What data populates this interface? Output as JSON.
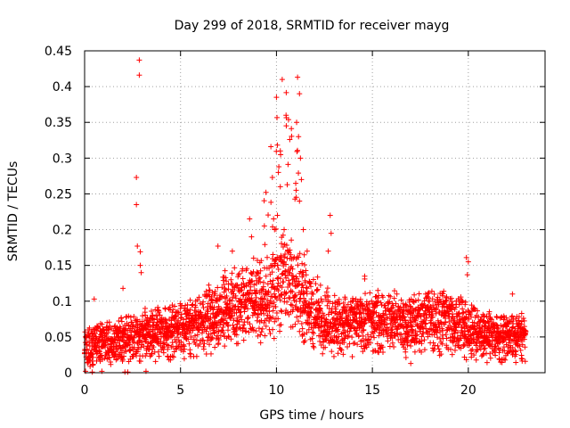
{
  "chart_data": {
    "type": "scatter",
    "title": "Day 299 of 2018, SRMTID for receiver mayg",
    "xlabel": "GPS time / hours",
    "ylabel": "SRMTID / TECUs",
    "xlim": [
      0,
      24
    ],
    "ylim": [
      0,
      0.45
    ],
    "xticks": [
      0,
      5,
      10,
      15,
      20
    ],
    "xtick_labels": [
      "0",
      "5",
      "10",
      "15",
      "20"
    ],
    "yticks": [
      0,
      0.05,
      0.1,
      0.15,
      0.2,
      0.25,
      0.3,
      0.35,
      0.4,
      0.45
    ],
    "ytick_labels": [
      "0",
      "0.05",
      "0.1",
      "0.15",
      "0.2",
      "0.25",
      "0.3",
      "0.35",
      "0.4",
      "0.45"
    ],
    "grid": true,
    "marker": "+",
    "color": "#ff0000",
    "series": [
      {
        "name": "SRMTID",
        "note": "estimated envelope of dense scatter (hourly median level and typical upper spread)",
        "envelope": {
          "x": [
            0,
            1,
            2,
            3,
            4,
            5,
            6,
            7,
            8,
            9,
            10,
            10.5,
            11,
            11.5,
            12,
            13,
            14,
            15,
            16,
            17,
            18,
            19,
            20,
            21,
            22,
            23
          ],
          "median": [
            0.035,
            0.04,
            0.045,
            0.05,
            0.055,
            0.06,
            0.065,
            0.08,
            0.09,
            0.095,
            0.11,
            0.14,
            0.12,
            0.09,
            0.075,
            0.065,
            0.065,
            0.07,
            0.07,
            0.065,
            0.075,
            0.07,
            0.06,
            0.05,
            0.05,
            0.05
          ],
          "upper": [
            0.06,
            0.07,
            0.08,
            0.09,
            0.09,
            0.1,
            0.11,
            0.14,
            0.15,
            0.17,
            0.38,
            0.4,
            0.4,
            0.15,
            0.14,
            0.11,
            0.1,
            0.1,
            0.1,
            0.1,
            0.12,
            0.11,
            0.1,
            0.08,
            0.08,
            0.08
          ]
        },
        "points": [
          {
            "x": 2.85,
            "y": 0.437
          },
          {
            "x": 2.85,
            "y": 0.416
          },
          {
            "x": 2.7,
            "y": 0.273
          },
          {
            "x": 2.7,
            "y": 0.235
          },
          {
            "x": 2.75,
            "y": 0.177
          },
          {
            "x": 2.9,
            "y": 0.169
          },
          {
            "x": 2.9,
            "y": 0.15
          },
          {
            "x": 2.95,
            "y": 0.14
          },
          {
            "x": 2.0,
            "y": 0.118
          },
          {
            "x": 0.5,
            "y": 0.103
          },
          {
            "x": 0.05,
            "y": 0.002
          },
          {
            "x": 0.4,
            "y": 0.001
          },
          {
            "x": 0.9,
            "y": 0.002
          },
          {
            "x": 2.1,
            "y": 0.001
          },
          {
            "x": 2.25,
            "y": 0.001
          },
          {
            "x": 3.2,
            "y": 0.002
          },
          {
            "x": 10.0,
            "y": 0.385
          },
          {
            "x": 10.3,
            "y": 0.41
          },
          {
            "x": 10.5,
            "y": 0.36
          },
          {
            "x": 10.2,
            "y": 0.31
          },
          {
            "x": 10.1,
            "y": 0.28
          },
          {
            "x": 10.2,
            "y": 0.26
          },
          {
            "x": 10.05,
            "y": 0.22
          },
          {
            "x": 10.4,
            "y": 0.2
          },
          {
            "x": 11.1,
            "y": 0.413
          },
          {
            "x": 11.2,
            "y": 0.39
          },
          {
            "x": 11.05,
            "y": 0.35
          },
          {
            "x": 11.15,
            "y": 0.33
          },
          {
            "x": 11.25,
            "y": 0.3
          },
          {
            "x": 11.3,
            "y": 0.27
          },
          {
            "x": 11.2,
            "y": 0.24
          },
          {
            "x": 11.4,
            "y": 0.2
          },
          {
            "x": 11.6,
            "y": 0.17
          },
          {
            "x": 12.8,
            "y": 0.22
          },
          {
            "x": 12.85,
            "y": 0.195
          },
          {
            "x": 12.7,
            "y": 0.17
          },
          {
            "x": 9.85,
            "y": 0.215
          },
          {
            "x": 9.9,
            "y": 0.2
          },
          {
            "x": 8.6,
            "y": 0.215
          },
          {
            "x": 8.7,
            "y": 0.19
          },
          {
            "x": 6.95,
            "y": 0.177
          },
          {
            "x": 7.7,
            "y": 0.17
          },
          {
            "x": 19.9,
            "y": 0.161
          },
          {
            "x": 20.0,
            "y": 0.155
          },
          {
            "x": 19.95,
            "y": 0.137
          },
          {
            "x": 14.6,
            "y": 0.135
          },
          {
            "x": 14.6,
            "y": 0.131
          },
          {
            "x": 17.0,
            "y": 0.013
          },
          {
            "x": 19.9,
            "y": 0.018
          },
          {
            "x": 22.3,
            "y": 0.11
          }
        ]
      }
    ]
  }
}
